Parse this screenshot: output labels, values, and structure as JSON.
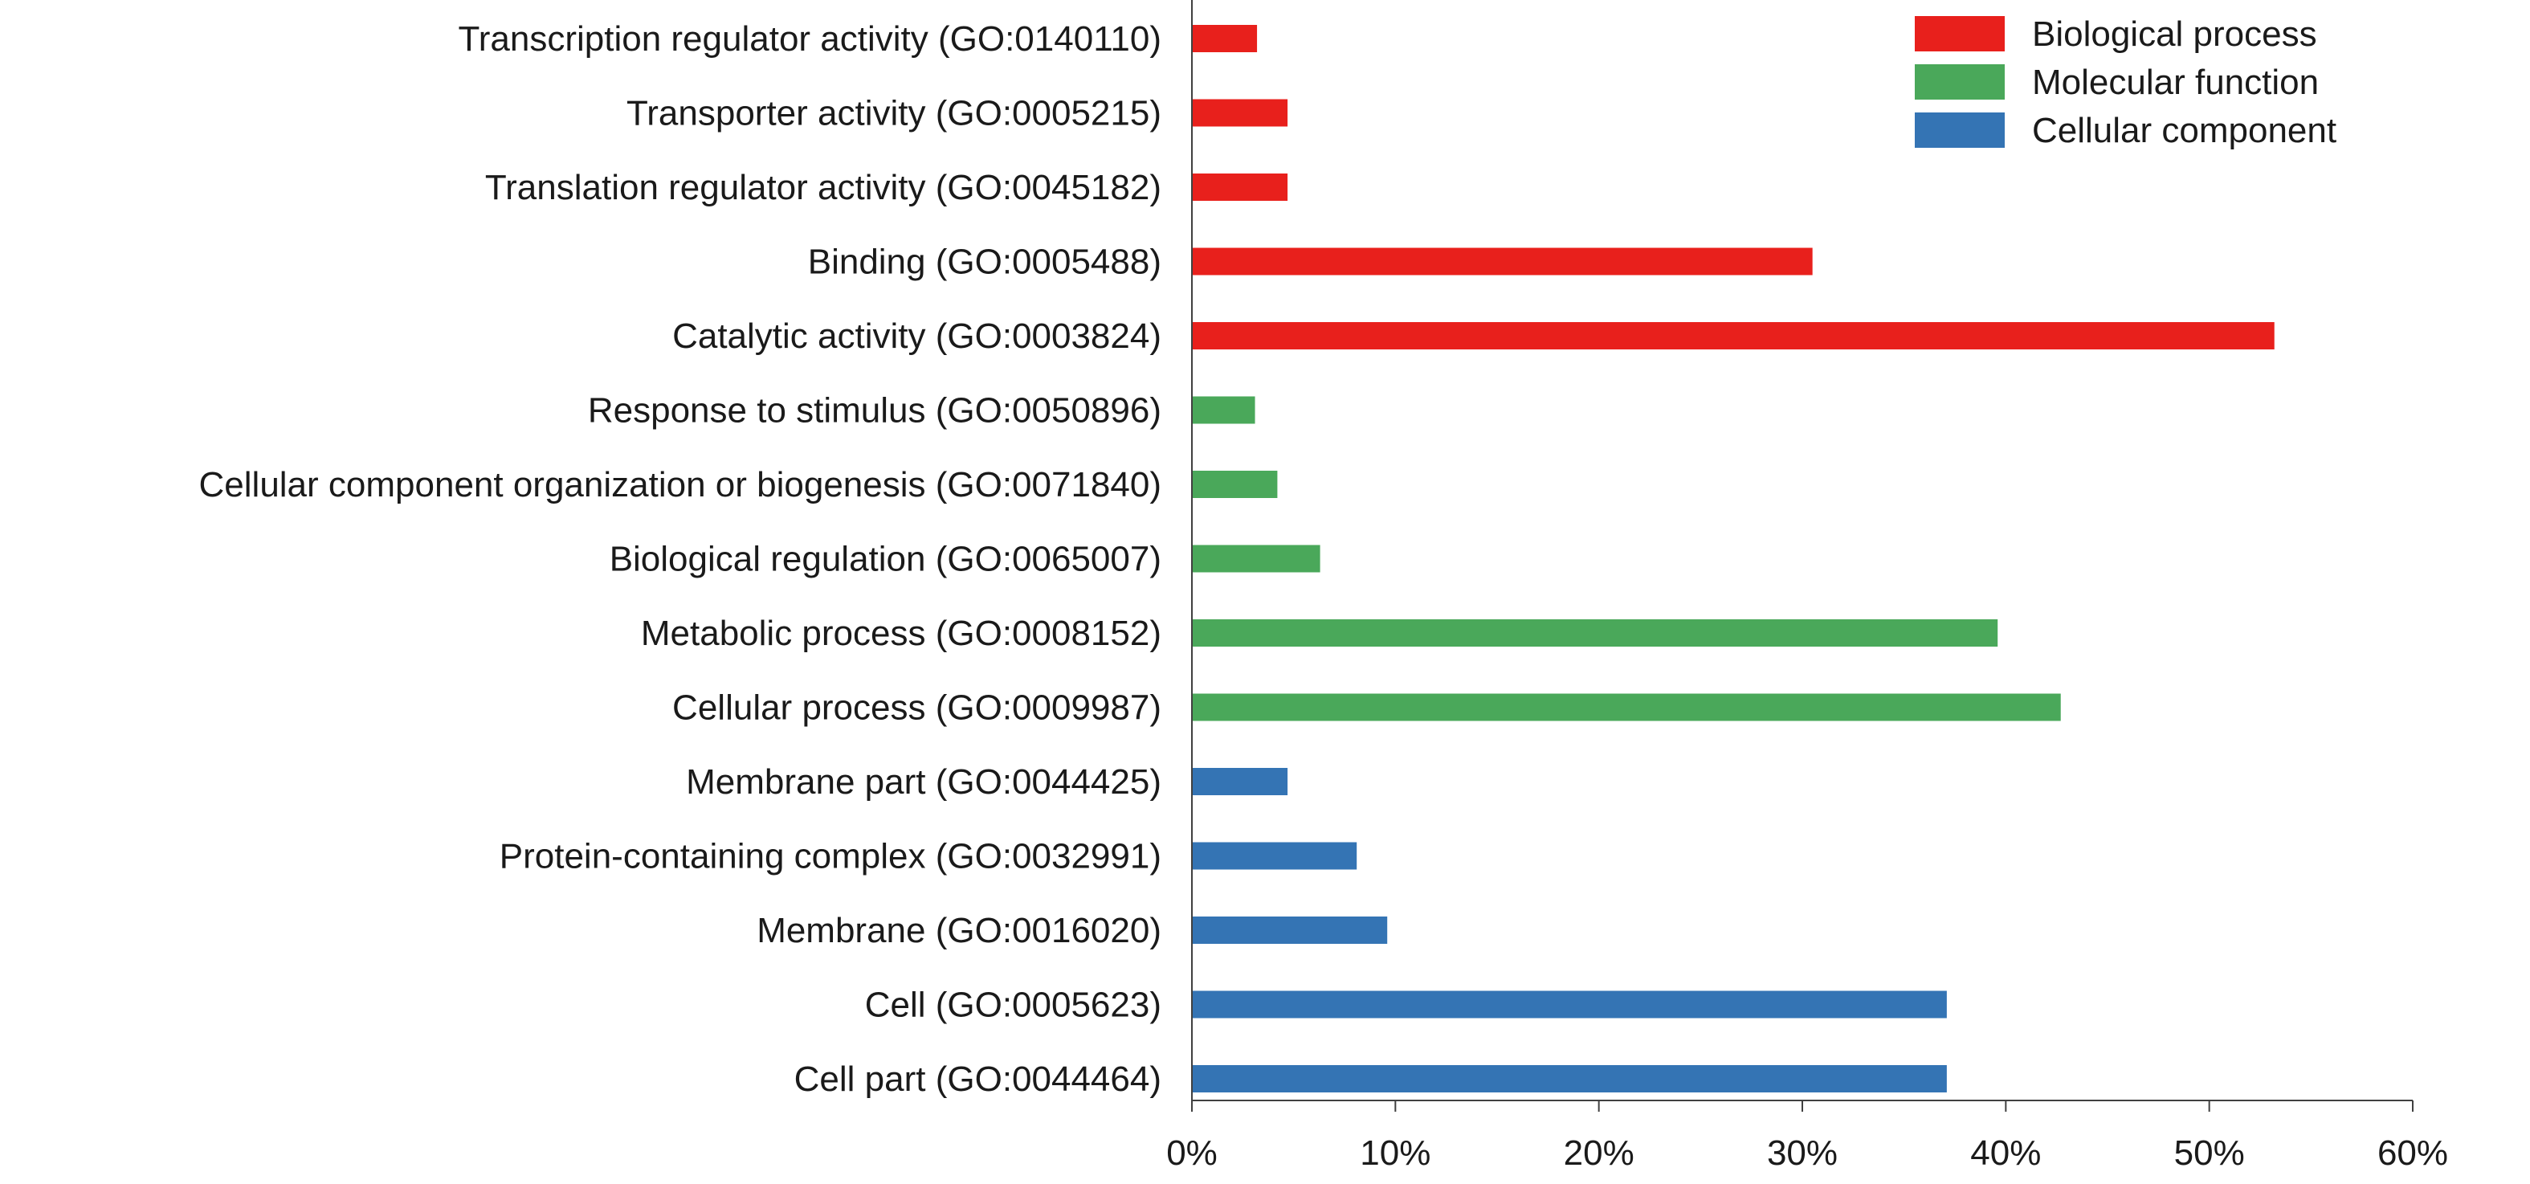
{
  "chart_data": {
    "type": "bar",
    "orientation": "horizontal",
    "title": "",
    "xlabel": "",
    "ylabel": "",
    "xlim": [
      0,
      60
    ],
    "x_ticks": [
      0,
      10,
      20,
      30,
      40,
      50,
      60
    ],
    "x_tick_labels": [
      "0%",
      "10%",
      "20%",
      "30%",
      "40%",
      "50%",
      "60%"
    ],
    "grid": false,
    "legend_position": "top-right",
    "legend": [
      {
        "label": "Biological process",
        "color": "#e8201c"
      },
      {
        "label": "Molecular function",
        "color": "#4aa85a"
      },
      {
        "label": "Cellular component",
        "color": "#3474b4"
      }
    ],
    "categories": [
      {
        "label": "Transcription regulator activity (GO:0140110)",
        "value": 3.2,
        "group": 0
      },
      {
        "label": "Transporter activity (GO:0005215)",
        "value": 4.7,
        "group": 0
      },
      {
        "label": "Translation regulator activity (GO:0045182)",
        "value": 4.7,
        "group": 0
      },
      {
        "label": "Binding (GO:0005488)",
        "value": 30.5,
        "group": 0
      },
      {
        "label": "Catalytic activity (GO:0003824)",
        "value": 53.2,
        "group": 0
      },
      {
        "label": "Response to stimulus (GO:0050896)",
        "value": 3.1,
        "group": 1
      },
      {
        "label": "Cellular component organization or biogenesis (GO:0071840)",
        "value": 4.2,
        "group": 1
      },
      {
        "label": "Biological regulation (GO:0065007)",
        "value": 6.3,
        "group": 1
      },
      {
        "label": "Metabolic process (GO:0008152)",
        "value": 39.6,
        "group": 1
      },
      {
        "label": "Cellular process (GO:0009987)",
        "value": 42.7,
        "group": 1
      },
      {
        "label": "Membrane part (GO:0044425)",
        "value": 4.7,
        "group": 2
      },
      {
        "label": "Protein-containing complex (GO:0032991)",
        "value": 8.1,
        "group": 2
      },
      {
        "label": "Membrane (GO:0016020)",
        "value": 9.6,
        "group": 2
      },
      {
        "label": "Cell (GO:0005623)",
        "value": 37.1,
        "group": 2
      },
      {
        "label": "Cell part (GO:0044464)",
        "value": 37.1,
        "group": 2
      }
    ]
  }
}
